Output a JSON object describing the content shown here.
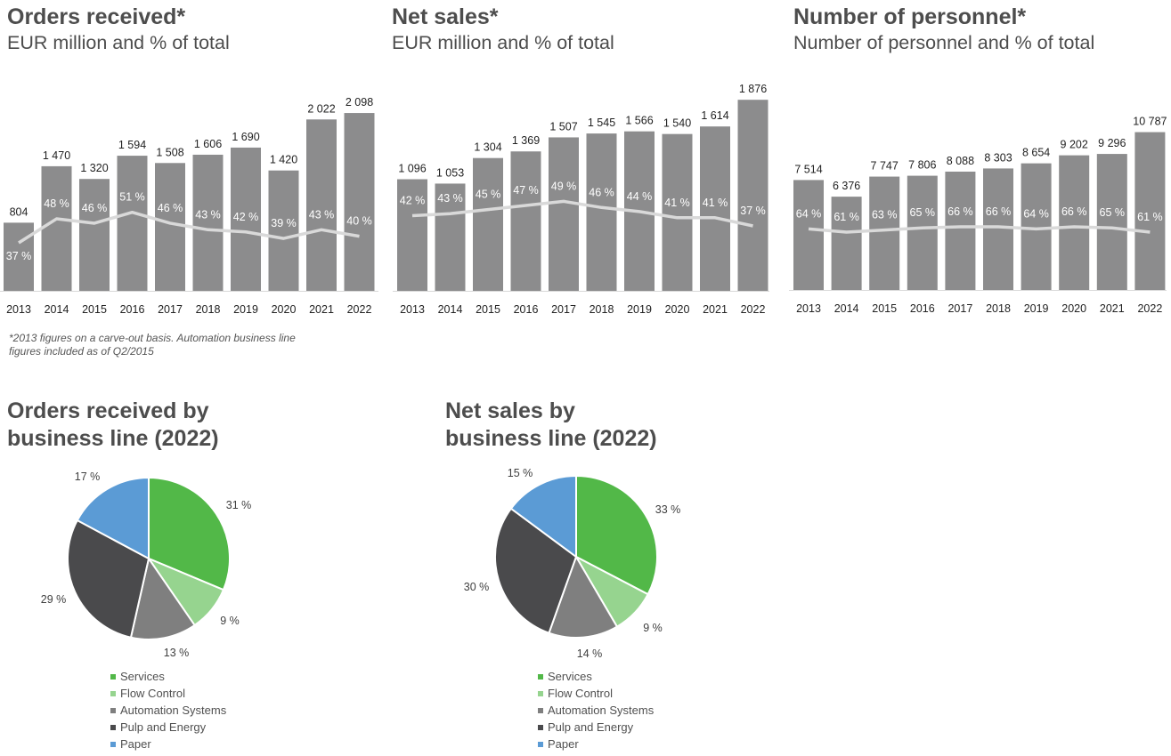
{
  "charts": [
    {
      "title": "Orders received*",
      "subtitle": "EUR million and % of total"
    },
    {
      "title": "Net sales*",
      "subtitle": "EUR million and % of total"
    },
    {
      "title": "Number of personnel*",
      "subtitle": "Number of personnel and % of total"
    }
  ],
  "footnote": {
    "line1": "*2013 figures on a carve-out basis. Automation business line",
    "line2": "figures included as of Q2/2015"
  },
  "pies": [
    {
      "title_line1": "Orders received by",
      "title_line2": "business line (2022)"
    },
    {
      "title_line1": "Net sales by",
      "title_line2": "business line (2022)"
    }
  ],
  "colors": {
    "bar": "#8c8c8d",
    "line": "#d9d9d9",
    "axis": "#d9d9d9",
    "services": "#52b848",
    "flow_control": "#96d48f",
    "automation_systems": "#7f7f7f",
    "pulp_energy": "#4a4a4c",
    "paper": "#5b9bd5"
  },
  "chart_data": [
    {
      "type": "bar",
      "title": "Orders received*",
      "subtitle": "EUR million and % of total",
      "categories": [
        "2013",
        "2014",
        "2015",
        "2016",
        "2017",
        "2018",
        "2019",
        "2020",
        "2021",
        "2022"
      ],
      "series": [
        {
          "name": "EUR million",
          "type": "bar",
          "values": [
            804,
            1470,
            1320,
            1594,
            1508,
            1606,
            1690,
            1420,
            2022,
            2098
          ],
          "labels": [
            "804",
            "1 470",
            "1 320",
            "1 594",
            "1 508",
            "1 606",
            "1 690",
            "1 420",
            "2 022",
            "2 098"
          ]
        },
        {
          "name": "% of total",
          "type": "line",
          "values": [
            37,
            48,
            46,
            51,
            46,
            43,
            42,
            39,
            43,
            40
          ],
          "labels": [
            "37 %",
            "48 %",
            "46 %",
            "51 %",
            "46 %",
            "43 %",
            "42 %",
            "39 %",
            "43 %",
            "40 %"
          ]
        }
      ],
      "ylim": [
        0,
        2200
      ]
    },
    {
      "type": "bar",
      "title": "Net sales*",
      "subtitle": "EUR million and % of total",
      "categories": [
        "2013",
        "2014",
        "2015",
        "2016",
        "2017",
        "2018",
        "2019",
        "2020",
        "2021",
        "2022"
      ],
      "series": [
        {
          "name": "EUR million",
          "type": "bar",
          "values": [
            1096,
            1053,
            1304,
            1369,
            1507,
            1545,
            1566,
            1540,
            1614,
            1876
          ],
          "labels": [
            "1 096",
            "1 053",
            "1 304",
            "1 369",
            "1 507",
            "1 545",
            "1 566",
            "1 540",
            "1 614",
            "1 876"
          ]
        },
        {
          "name": "% of total",
          "type": "line",
          "values": [
            42,
            43,
            45,
            47,
            49,
            46,
            44,
            41,
            41,
            37
          ],
          "labels": [
            "42 %",
            "43 %",
            "45 %",
            "47 %",
            "49 %",
            "46 %",
            "44 %",
            "41 %",
            "41 %",
            "37 %"
          ]
        }
      ],
      "ylim": [
        0,
        2000
      ]
    },
    {
      "type": "bar",
      "title": "Number of personnel*",
      "subtitle": "Number of personnel and % of total",
      "categories": [
        "2013",
        "2014",
        "2015",
        "2016",
        "2017",
        "2018",
        "2019",
        "2020",
        "2021",
        "2022"
      ],
      "series": [
        {
          "name": "Number of personnel",
          "type": "bar",
          "values": [
            7514,
            6376,
            7747,
            7806,
            8088,
            8303,
            8654,
            9202,
            9296,
            10787
          ],
          "labels": [
            "7 514",
            "6 376",
            "7 747",
            "7 806",
            "8 088",
            "8 303",
            "8 654",
            "9 202",
            "9 296",
            "10 787"
          ]
        },
        {
          "name": "% of total",
          "type": "line",
          "values": [
            64,
            61,
            63,
            65,
            66,
            66,
            64,
            66,
            65,
            61
          ],
          "labels": [
            "64 %",
            "61 %",
            "63 %",
            "65 %",
            "66 %",
            "66 %",
            "64 %",
            "66 %",
            "65 %",
            "61 %"
          ]
        }
      ],
      "ylim": [
        0,
        12000
      ]
    },
    {
      "type": "pie",
      "title": "Orders received by business line (2022)",
      "categories": [
        "Services",
        "Flow Control",
        "Automation Systems",
        "Pulp and Energy",
        "Paper"
      ],
      "values": [
        31,
        9,
        13,
        29,
        17
      ],
      "labels": [
        "31 %",
        "9 %",
        "13 %",
        "29 %",
        "17 %"
      ]
    },
    {
      "type": "pie",
      "title": "Net sales by business line (2022)",
      "categories": [
        "Services",
        "Flow Control",
        "Automation Systems",
        "Pulp and Energy",
        "Paper"
      ],
      "values": [
        33,
        9,
        14,
        30,
        15
      ],
      "labels": [
        "33 %",
        "9 %",
        "14 %",
        "30 %",
        "15 %"
      ]
    }
  ]
}
